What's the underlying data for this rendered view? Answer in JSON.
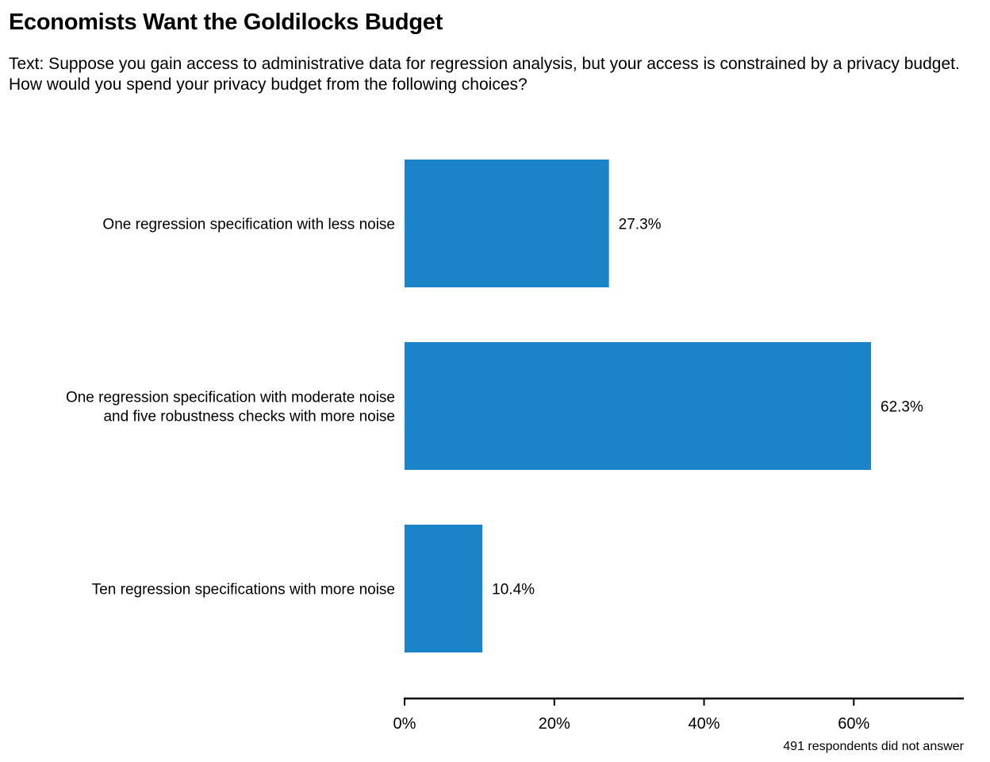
{
  "chart_data": {
    "type": "bar",
    "orientation": "horizontal",
    "title": "Economists Want the Goldilocks Budget",
    "subtitle": "Text: Suppose you gain access to administrative data for regression analysis, but your access is constrained by a privacy budget. How would you spend your privacy budget from the following choices?",
    "categories": [
      [
        "One regression specification with less noise"
      ],
      [
        "One regression specification with moderate noise",
        "and five robustness checks with more noise"
      ],
      [
        "Ten regression specifications with more noise"
      ]
    ],
    "values": [
      27.3,
      62.3,
      10.4
    ],
    "value_labels": [
      "27.3%",
      "62.3%",
      "10.4%"
    ],
    "xlim": [
      0,
      75
    ],
    "x_ticks": [
      0,
      20,
      40,
      60
    ],
    "x_tick_labels": [
      "0%",
      "20%",
      "40%",
      "60%"
    ],
    "xlabel": "",
    "ylabel": "",
    "caption": "491 respondents did not answer",
    "bar_color": "#1b84c9",
    "grid": false,
    "legend": "none"
  }
}
